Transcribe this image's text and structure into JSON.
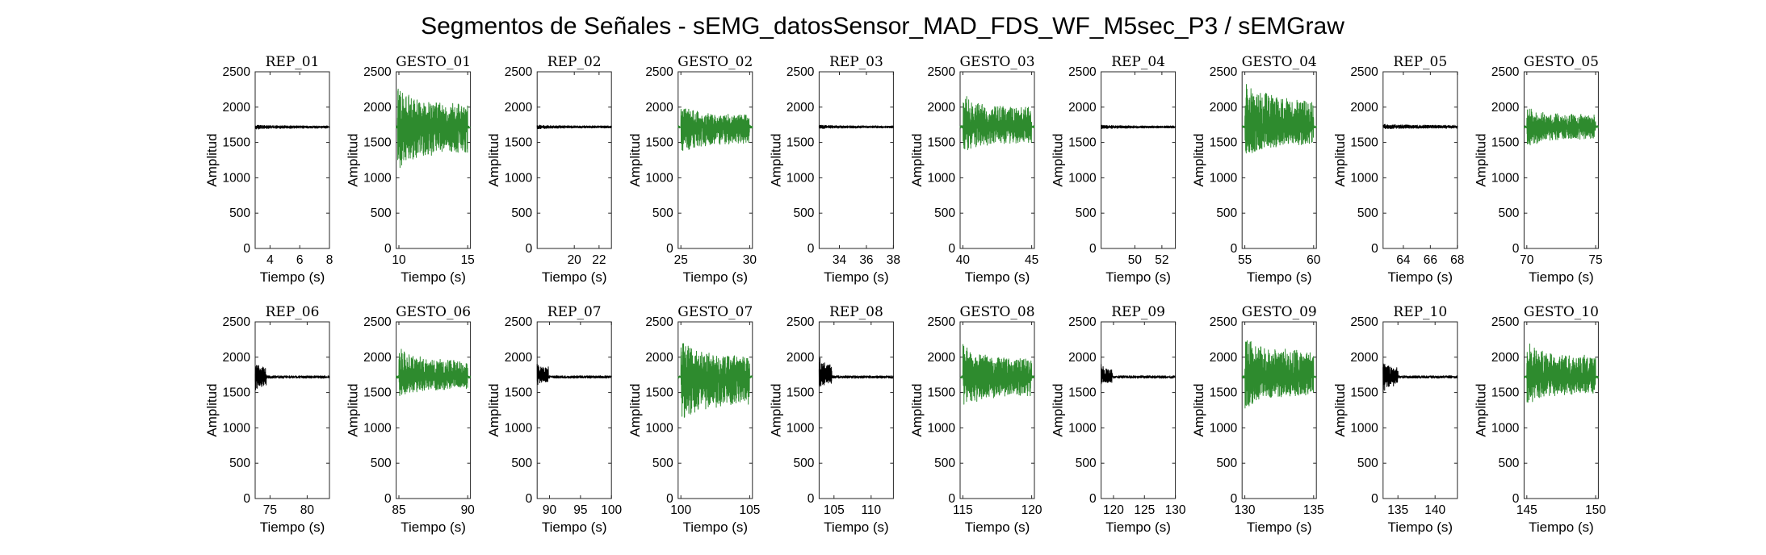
{
  "figure_title": "Segmentos de Señales - sEMG_datosSensor_MAD_FDS_WF_M5sec_P3 / sEMGraw",
  "colors": {
    "rep": "#000000",
    "gesto": "#2e8b2e"
  },
  "chart_data": [
    {
      "type": "line",
      "title": "REP_01",
      "xlabel": "Tiempo (s)",
      "ylabel": "Amplitud",
      "xlim": [
        3,
        8
      ],
      "ylim": [
        0,
        2500
      ],
      "xticks": [
        4,
        6,
        8
      ],
      "yticks": [
        0,
        500,
        1000,
        1500,
        2000,
        2500
      ],
      "series": [
        {
          "color": "#000000",
          "baseline": 1720,
          "burst": [
            3,
            8,
            1690,
            1745
          ]
        }
      ]
    },
    {
      "type": "line",
      "title": "GESTO_01",
      "xlabel": "Tiempo (s)",
      "ylabel": "Amplitud",
      "xlim": [
        9.8,
        15.2
      ],
      "ylim": [
        0,
        2500
      ],
      "xticks": [
        10,
        15
      ],
      "yticks": [
        0,
        500,
        1000,
        1500,
        2000,
        2500
      ],
      "series": [
        {
          "color": "#2e8b2e",
          "baseline": 1720,
          "burst": [
            9.9,
            15.0,
            1150,
            2250
          ]
        }
      ]
    },
    {
      "type": "line",
      "title": "REP_02",
      "xlabel": "Tiempo (s)",
      "ylabel": "Amplitud",
      "xlim": [
        17,
        23
      ],
      "ylim": [
        0,
        2500
      ],
      "xticks": [
        20,
        22
      ],
      "yticks": [
        0,
        500,
        1000,
        1500,
        2000,
        2500
      ],
      "series": [
        {
          "color": "#000000",
          "baseline": 1720,
          "burst": [
            17,
            23,
            1695,
            1745
          ]
        }
      ]
    },
    {
      "type": "line",
      "title": "GESTO_02",
      "xlabel": "Tiempo (s)",
      "ylabel": "Amplitud",
      "xlim": [
        24.8,
        30.2
      ],
      "ylim": [
        0,
        2500
      ],
      "xticks": [
        25,
        30
      ],
      "yticks": [
        0,
        500,
        1000,
        1500,
        2000,
        2500
      ],
      "series": [
        {
          "color": "#2e8b2e",
          "baseline": 1720,
          "burst": [
            25.0,
            30.0,
            1350,
            2000
          ]
        }
      ]
    },
    {
      "type": "line",
      "title": "REP_03",
      "xlabel": "Tiempo (s)",
      "ylabel": "Amplitud",
      "xlim": [
        32.5,
        38
      ],
      "ylim": [
        0,
        2500
      ],
      "xticks": [
        34,
        36,
        38
      ],
      "yticks": [
        0,
        500,
        1000,
        1500,
        2000,
        2500
      ],
      "series": [
        {
          "color": "#000000",
          "baseline": 1720,
          "burst": [
            32.5,
            38,
            1695,
            1745
          ]
        }
      ]
    },
    {
      "type": "line",
      "title": "GESTO_03",
      "xlabel": "Tiempo (s)",
      "ylabel": "Amplitud",
      "xlim": [
        39.8,
        45.2
      ],
      "ylim": [
        0,
        2500
      ],
      "xticks": [
        40,
        45
      ],
      "yticks": [
        0,
        500,
        1000,
        1500,
        2000,
        2500
      ],
      "series": [
        {
          "color": "#2e8b2e",
          "baseline": 1720,
          "burst": [
            40.0,
            45.0,
            1350,
            2150
          ]
        }
      ]
    },
    {
      "type": "line",
      "title": "REP_04",
      "xlabel": "Tiempo (s)",
      "ylabel": "Amplitud",
      "xlim": [
        47.5,
        53
      ],
      "ylim": [
        0,
        2500
      ],
      "xticks": [
        50,
        52
      ],
      "yticks": [
        0,
        500,
        1000,
        1500,
        2000,
        2500
      ],
      "series": [
        {
          "color": "#000000",
          "baseline": 1720,
          "burst": [
            47.5,
            53,
            1695,
            1745
          ]
        }
      ]
    },
    {
      "type": "line",
      "title": "GESTO_04",
      "xlabel": "Tiempo (s)",
      "ylabel": "Amplitud",
      "xlim": [
        54.8,
        60.2
      ],
      "ylim": [
        0,
        2500
      ],
      "xticks": [
        55,
        60
      ],
      "yticks": [
        0,
        500,
        1000,
        1500,
        2000,
        2500
      ],
      "series": [
        {
          "color": "#2e8b2e",
          "baseline": 1720,
          "burst": [
            55.0,
            60.0,
            1300,
            2350
          ]
        }
      ]
    },
    {
      "type": "line",
      "title": "REP_05",
      "xlabel": "Tiempo (s)",
      "ylabel": "Amplitud",
      "xlim": [
        62.5,
        68
      ],
      "ylim": [
        0,
        2500
      ],
      "xticks": [
        64,
        66,
        68
      ],
      "yticks": [
        0,
        500,
        1000,
        1500,
        2000,
        2500
      ],
      "series": [
        {
          "color": "#000000",
          "baseline": 1720,
          "burst": [
            62.5,
            68,
            1690,
            1760
          ]
        }
      ]
    },
    {
      "type": "line",
      "title": "GESTO_05",
      "xlabel": "Tiempo (s)",
      "ylabel": "Amplitud",
      "xlim": [
        69.8,
        75.2
      ],
      "ylim": [
        0,
        2500
      ],
      "xticks": [
        70,
        75
      ],
      "yticks": [
        0,
        500,
        1000,
        1500,
        2000,
        2500
      ],
      "series": [
        {
          "color": "#2e8b2e",
          "baseline": 1720,
          "burst": [
            70.0,
            75.0,
            1450,
            2000
          ]
        }
      ]
    },
    {
      "type": "line",
      "title": "REP_06",
      "xlabel": "Tiempo (s)",
      "ylabel": "Amplitud",
      "xlim": [
        73,
        83
      ],
      "ylim": [
        0,
        2500
      ],
      "xticks": [
        75,
        80
      ],
      "yticks": [
        0,
        500,
        1000,
        1500,
        2000,
        2500
      ],
      "series": [
        {
          "color": "#000000",
          "baseline": 1720,
          "burst": [
            73.0,
            74.5,
            1500,
            1950
          ]
        }
      ]
    },
    {
      "type": "line",
      "title": "GESTO_06",
      "xlabel": "Tiempo (s)",
      "ylabel": "Amplitud",
      "xlim": [
        84.8,
        90.2
      ],
      "ylim": [
        0,
        2500
      ],
      "xticks": [
        85,
        90
      ],
      "yticks": [
        0,
        500,
        1000,
        1500,
        2000,
        2500
      ],
      "series": [
        {
          "color": "#2e8b2e",
          "baseline": 1720,
          "burst": [
            85.0,
            90.0,
            1450,
            2100
          ]
        }
      ]
    },
    {
      "type": "line",
      "title": "REP_07",
      "xlabel": "Tiempo (s)",
      "ylabel": "Amplitud",
      "xlim": [
        88,
        100
      ],
      "ylim": [
        0,
        2500
      ],
      "xticks": [
        90,
        95,
        100
      ],
      "yticks": [
        0,
        500,
        1000,
        1500,
        2000,
        2500
      ],
      "series": [
        {
          "color": "#000000",
          "baseline": 1720,
          "burst": [
            88.0,
            89.8,
            1600,
            1950
          ]
        }
      ]
    },
    {
      "type": "line",
      "title": "GESTO_07",
      "xlabel": "Tiempo (s)",
      "ylabel": "Amplitud",
      "xlim": [
        99.8,
        105.2
      ],
      "ylim": [
        0,
        2500
      ],
      "xticks": [
        100,
        105
      ],
      "yticks": [
        0,
        500,
        1000,
        1500,
        2000,
        2500
      ],
      "series": [
        {
          "color": "#2e8b2e",
          "baseline": 1720,
          "burst": [
            100.0,
            105.0,
            1100,
            2200
          ]
        }
      ]
    },
    {
      "type": "line",
      "title": "REP_08",
      "xlabel": "Tiempo (s)",
      "ylabel": "Amplitud",
      "xlim": [
        103,
        113
      ],
      "ylim": [
        0,
        2500
      ],
      "xticks": [
        105,
        110
      ],
      "yticks": [
        0,
        500,
        1000,
        1500,
        2000,
        2500
      ],
      "series": [
        {
          "color": "#000000",
          "baseline": 1720,
          "burst": [
            103.0,
            104.7,
            1550,
            2000
          ]
        }
      ]
    },
    {
      "type": "line",
      "title": "GESTO_08",
      "xlabel": "Tiempo (s)",
      "ylabel": "Amplitud",
      "xlim": [
        114.8,
        120.2
      ],
      "ylim": [
        0,
        2500
      ],
      "xticks": [
        115,
        120
      ],
      "yticks": [
        0,
        500,
        1000,
        1500,
        2000,
        2500
      ],
      "series": [
        {
          "color": "#2e8b2e",
          "baseline": 1720,
          "burst": [
            115.0,
            120.0,
            1300,
            2150
          ]
        }
      ]
    },
    {
      "type": "line",
      "title": "REP_09",
      "xlabel": "Tiempo (s)",
      "ylabel": "Amplitud",
      "xlim": [
        118,
        130
      ],
      "ylim": [
        0,
        2500
      ],
      "xticks": [
        120,
        125,
        130
      ],
      "yticks": [
        0,
        500,
        1000,
        1500,
        2000,
        2500
      ],
      "series": [
        {
          "color": "#000000",
          "baseline": 1720,
          "burst": [
            118.0,
            119.8,
            1600,
            1900
          ]
        }
      ]
    },
    {
      "type": "line",
      "title": "GESTO_09",
      "xlabel": "Tiempo (s)",
      "ylabel": "Amplitud",
      "xlim": [
        129.8,
        135.2
      ],
      "ylim": [
        0,
        2500
      ],
      "xticks": [
        130,
        135
      ],
      "yticks": [
        0,
        500,
        1000,
        1500,
        2000,
        2500
      ],
      "series": [
        {
          "color": "#2e8b2e",
          "baseline": 1720,
          "burst": [
            130.0,
            135.0,
            1300,
            2300
          ]
        }
      ]
    },
    {
      "type": "line",
      "title": "REP_10",
      "xlabel": "Tiempo (s)",
      "ylabel": "Amplitud",
      "xlim": [
        133,
        143
      ],
      "ylim": [
        0,
        2500
      ],
      "xticks": [
        135,
        140
      ],
      "yticks": [
        0,
        500,
        1000,
        1500,
        2000,
        2500
      ],
      "series": [
        {
          "color": "#000000",
          "baseline": 1720,
          "burst": [
            133.0,
            135.0,
            1500,
            1950
          ]
        }
      ]
    },
    {
      "type": "line",
      "title": "GESTO_10",
      "xlabel": "Tiempo (s)",
      "ylabel": "Amplitud",
      "xlim": [
        144.8,
        150.2
      ],
      "ylim": [
        0,
        2500
      ],
      "xticks": [
        145,
        150
      ],
      "yticks": [
        0,
        500,
        1000,
        1500,
        2000,
        2500
      ],
      "series": [
        {
          "color": "#2e8b2e",
          "baseline": 1720,
          "burst": [
            145.0,
            150.0,
            1350,
            2200
          ]
        }
      ]
    }
  ]
}
